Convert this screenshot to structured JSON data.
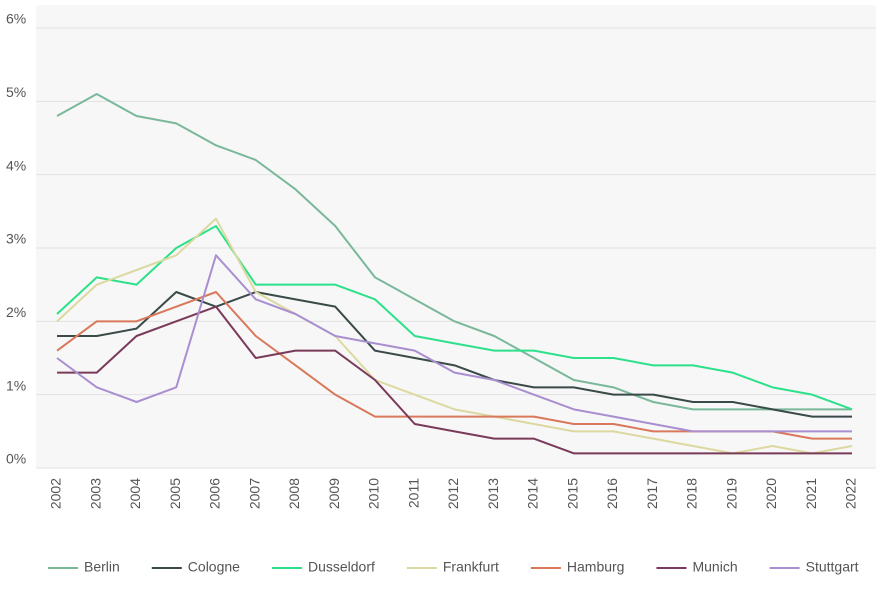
{
  "chart_data": {
    "type": "line",
    "categories": [
      "2002",
      "2003",
      "2004",
      "2005",
      "2006",
      "2007",
      "2008",
      "2009",
      "2010",
      "2011",
      "2012",
      "2013",
      "2014",
      "2015",
      "2016",
      "2017",
      "2018",
      "2019",
      "2020",
      "2021",
      "2022"
    ],
    "ylim": [
      0,
      6
    ],
    "yticks": [
      {
        "value": 0,
        "label": "0%"
      },
      {
        "value": 1,
        "label": "1%"
      },
      {
        "value": 2,
        "label": "2%"
      },
      {
        "value": 3,
        "label": "3%"
      },
      {
        "value": 4,
        "label": "4%"
      },
      {
        "value": 5,
        "label": "5%"
      },
      {
        "value": 6,
        "label": "6%"
      }
    ],
    "grid": true,
    "legend": "bottom",
    "series": [
      {
        "name": "Berlin",
        "color": "#7ab89a",
        "values": [
          4.8,
          5.1,
          4.8,
          4.7,
          4.4,
          4.2,
          3.8,
          3.3,
          2.6,
          2.3,
          2.0,
          1.8,
          1.5,
          1.2,
          1.1,
          0.9,
          0.8,
          0.8,
          0.8,
          0.8,
          0.8
        ]
      },
      {
        "name": "Cologne",
        "color": "#3a4a48",
        "values": [
          1.8,
          1.8,
          1.9,
          2.4,
          2.2,
          2.4,
          2.3,
          2.2,
          1.6,
          1.5,
          1.4,
          1.2,
          1.1,
          1.1,
          1.0,
          1.0,
          0.9,
          0.9,
          0.8,
          0.7,
          0.7
        ]
      },
      {
        "name": "Dusseldorf",
        "color": "#2de08a",
        "values": [
          2.1,
          2.6,
          2.5,
          3.0,
          3.3,
          2.5,
          2.5,
          2.5,
          2.3,
          1.8,
          1.7,
          1.6,
          1.6,
          1.5,
          1.5,
          1.4,
          1.4,
          1.3,
          1.1,
          1.0,
          0.8
        ]
      },
      {
        "name": "Frankfurt",
        "color": "#dcd9a0",
        "values": [
          2.0,
          2.5,
          2.7,
          2.9,
          3.4,
          2.4,
          2.1,
          1.8,
          1.2,
          1.0,
          0.8,
          0.7,
          0.6,
          0.5,
          0.5,
          0.4,
          0.3,
          0.2,
          0.3,
          0.2,
          0.3
        ]
      },
      {
        "name": "Hamburg",
        "color": "#d9785a",
        "values": [
          1.6,
          2.0,
          2.0,
          2.2,
          2.4,
          1.8,
          1.4,
          1.0,
          0.7,
          0.7,
          0.7,
          0.7,
          0.7,
          0.6,
          0.6,
          0.5,
          0.5,
          0.5,
          0.5,
          0.4,
          0.4
        ]
      },
      {
        "name": "Munich",
        "color": "#7a3a5a",
        "values": [
          1.3,
          1.3,
          1.8,
          2.0,
          2.2,
          1.5,
          1.6,
          1.6,
          1.2,
          0.6,
          0.5,
          0.4,
          0.4,
          0.2,
          0.2,
          0.2,
          0.2,
          0.2,
          0.2,
          0.2,
          0.2
        ]
      },
      {
        "name": "Stuttgart",
        "color": "#a98fd0",
        "values": [
          1.5,
          1.1,
          0.9,
          1.1,
          2.9,
          2.3,
          2.1,
          1.8,
          1.7,
          1.6,
          1.3,
          1.2,
          1.0,
          0.8,
          0.7,
          0.6,
          0.5,
          0.5,
          0.5,
          0.5,
          0.5
        ]
      }
    ]
  }
}
